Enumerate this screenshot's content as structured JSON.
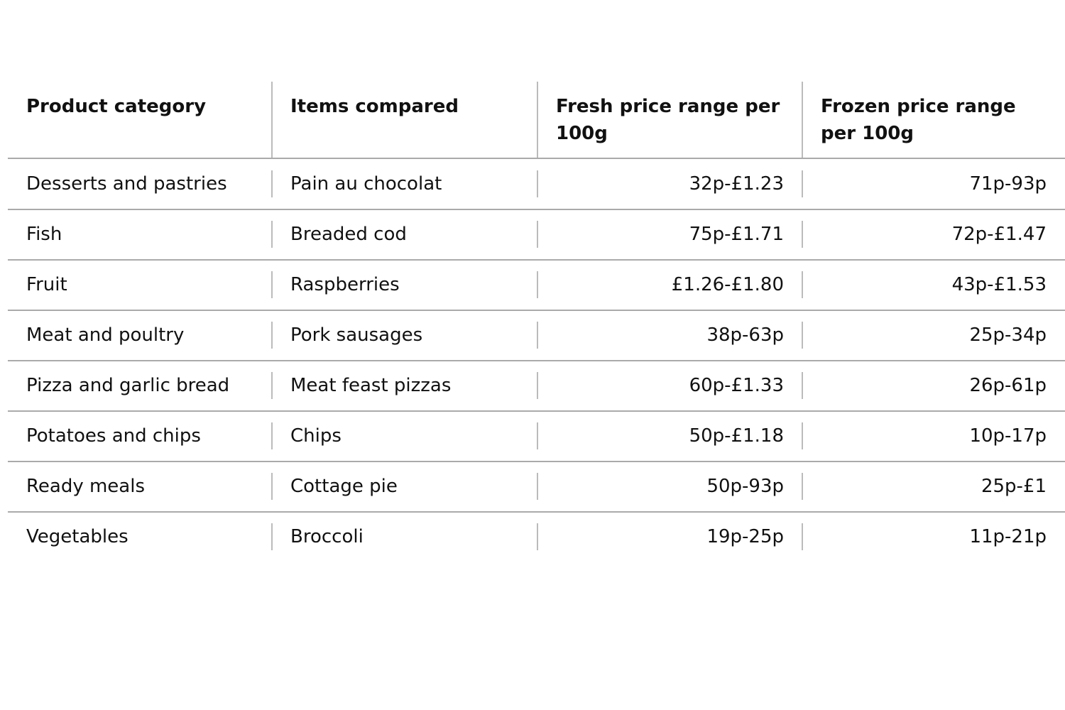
{
  "table": {
    "header": [
      "Product category",
      "Items compared",
      "Fresh price range per 100g",
      "Frozen price range per 100g"
    ],
    "rows": [
      [
        "Desserts and pastries",
        "Pain au chocolat",
        "32p-£1.23",
        "71p-93p"
      ],
      [
        "Fish",
        "Breaded cod",
        "75p-£1.71",
        "72p-£1.47"
      ],
      [
        "Fruit",
        "Raspberries",
        "£1.26-£1.80",
        "43p-£1.53"
      ],
      [
        "Meat and poultry",
        "Pork sausages",
        "38p-63p",
        "25p-34p"
      ],
      [
        "Pizza and garlic bread",
        "Meat feast pizzas",
        "60p-£1.33",
        "26p-61p"
      ],
      [
        "Potatoes and chips",
        "Chips",
        "50p-£1.18",
        "10p-17p"
      ],
      [
        "Ready meals",
        "Cottage pie",
        "50p-93p",
        "25p-£1"
      ],
      [
        "Vegetables",
        "Broccoli",
        "19p-25p",
        "11p-21p"
      ]
    ]
  }
}
